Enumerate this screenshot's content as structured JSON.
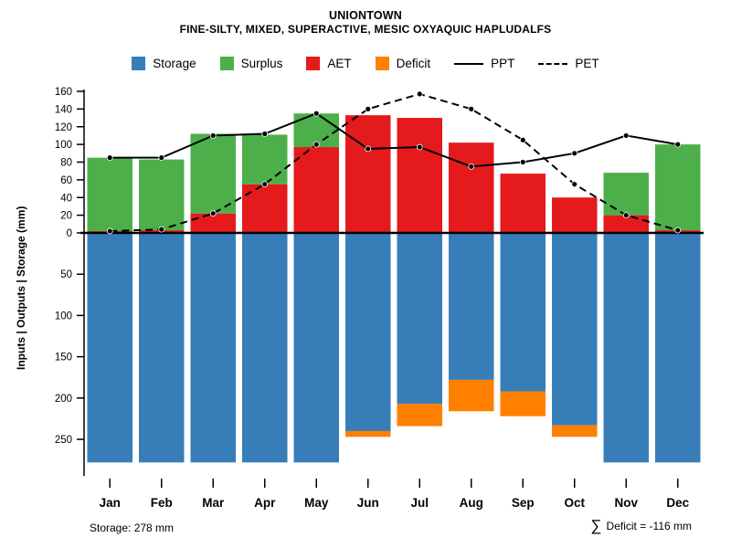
{
  "title": "UNIONTOWN",
  "subtitle": "FINE-SILTY, MIXED, SUPERACTIVE, MESIC OXYAQUIC HAPLUDALFS",
  "ylabel": "Inputs | Outputs | Storage  (mm)",
  "footer": {
    "storage": "Storage: 278 mm",
    "sigma": "∑",
    "deficit": "Deficit = -116 mm"
  },
  "legend": [
    {
      "label": "Storage"
    },
    {
      "label": "Surplus"
    },
    {
      "label": "AET"
    },
    {
      "label": "Deficit"
    },
    {
      "label": "PPT"
    },
    {
      "label": "PET"
    }
  ],
  "colors": {
    "storage": "#377eb8",
    "surplus": "#4daf4a",
    "aet": "#e41a1c",
    "deficit": "#ff7f00",
    "line": "#000000"
  },
  "chart_data": {
    "type": "bar",
    "title": "UNIONTOWN",
    "categories": [
      "Jan",
      "Feb",
      "Mar",
      "Apr",
      "May",
      "Jun",
      "Jul",
      "Aug",
      "Sep",
      "Oct",
      "Nov",
      "Dec"
    ],
    "y_up": {
      "min": 0,
      "max": 160,
      "tick": 20
    },
    "y_down": {
      "min": 0,
      "max": 250,
      "tick": 50
    },
    "series": [
      {
        "name": "AET",
        "kind": "bar-up",
        "color": "#e41a1c",
        "values": [
          2,
          3,
          22,
          55,
          97,
          133,
          130,
          102,
          67,
          40,
          20,
          3
        ]
      },
      {
        "name": "Surplus",
        "kind": "bar-up-stacked",
        "color": "#4daf4a",
        "values": [
          83,
          80,
          90,
          56,
          38,
          0,
          0,
          0,
          0,
          0,
          48,
          97
        ]
      },
      {
        "name": "Storage",
        "kind": "bar-down",
        "color": "#377eb8",
        "values": [
          278,
          278,
          278,
          278,
          278,
          240,
          207,
          178,
          192,
          233,
          278,
          278
        ]
      },
      {
        "name": "Deficit",
        "kind": "bar-down-stacked",
        "color": "#ff7f00",
        "values": [
          0,
          0,
          0,
          0,
          0,
          7,
          27,
          38,
          30,
          14,
          0,
          0
        ]
      },
      {
        "name": "PPT",
        "kind": "line-solid",
        "color": "#000000",
        "values": [
          85,
          85,
          110,
          112,
          135,
          95,
          97,
          75,
          80,
          90,
          110,
          100
        ]
      },
      {
        "name": "PET",
        "kind": "line-dashed",
        "color": "#000000",
        "values": [
          2,
          4,
          22,
          55,
          100,
          140,
          157,
          140,
          105,
          55,
          20,
          3
        ]
      }
    ],
    "annotations": {
      "storage_capacity_mm": 278,
      "total_deficit_mm": -116
    },
    "legend_position": "top",
    "grid": false
  }
}
